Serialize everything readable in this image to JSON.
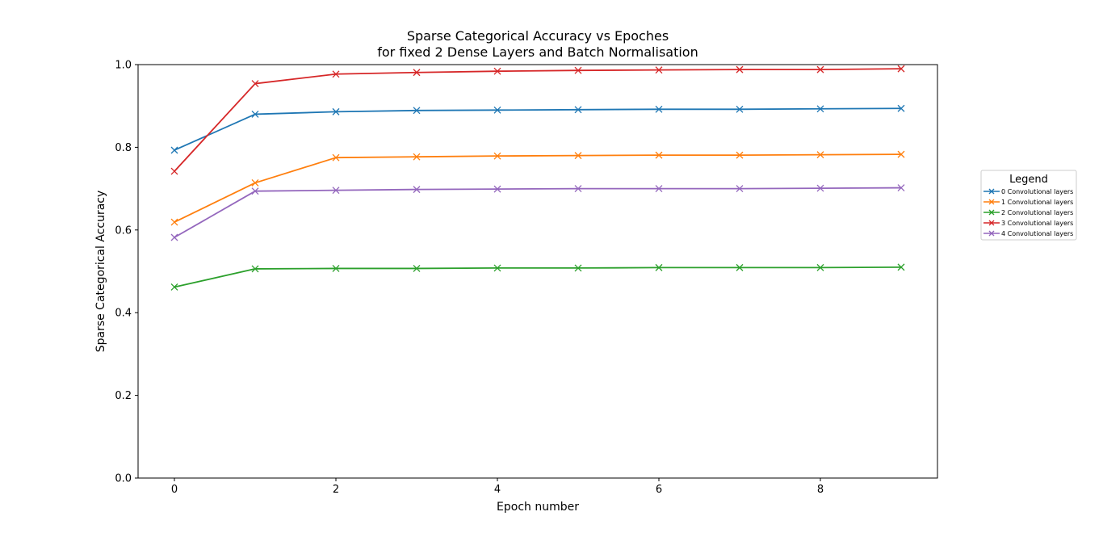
{
  "chart_data": {
    "type": "line",
    "title": "Sparse Categorical Accuracy vs Epoches",
    "subtitle": "for fixed 2 Dense Layers and Batch Normalisation",
    "xlabel": "Epoch number",
    "ylabel": "Sparse Categorical Accuracy",
    "xlim": [
      -0.45,
      9.45
    ],
    "ylim": [
      0.0,
      1.0
    ],
    "x_ticks": [
      0,
      2,
      4,
      6,
      8
    ],
    "y_ticks": [
      0.0,
      0.2,
      0.4,
      0.6,
      0.8,
      1.0
    ],
    "x_tick_labels": [
      "0",
      "2",
      "4",
      "6",
      "8"
    ],
    "y_tick_labels": [
      "0.0",
      "0.2",
      "0.4",
      "0.6",
      "0.8",
      "1.0"
    ],
    "grid": false,
    "marker": "x",
    "legend": {
      "title": "Legend",
      "placement": "outside-right"
    },
    "x": [
      0,
      1,
      2,
      3,
      4,
      5,
      6,
      7,
      8,
      9
    ],
    "series": [
      {
        "name": "0 Convolutional layers",
        "color": "#1f77b4",
        "values": [
          0.793,
          0.88,
          0.886,
          0.889,
          0.89,
          0.891,
          0.892,
          0.892,
          0.893,
          0.894
        ]
      },
      {
        "name": "1 Convolutional layers",
        "color": "#ff7f0e",
        "values": [
          0.619,
          0.714,
          0.775,
          0.777,
          0.779,
          0.78,
          0.781,
          0.781,
          0.782,
          0.783
        ]
      },
      {
        "name": "2 Convolutional layers",
        "color": "#2ca02c",
        "values": [
          0.462,
          0.506,
          0.507,
          0.507,
          0.508,
          0.508,
          0.509,
          0.509,
          0.509,
          0.51
        ]
      },
      {
        "name": "3 Convolutional layers",
        "color": "#d62728",
        "values": [
          0.742,
          0.954,
          0.977,
          0.981,
          0.984,
          0.986,
          0.987,
          0.988,
          0.988,
          0.99
        ]
      },
      {
        "name": "4 Convolutional layers",
        "color": "#9467bd",
        "values": [
          0.582,
          0.694,
          0.696,
          0.698,
          0.699,
          0.7,
          0.7,
          0.7,
          0.701,
          0.702
        ]
      }
    ]
  }
}
